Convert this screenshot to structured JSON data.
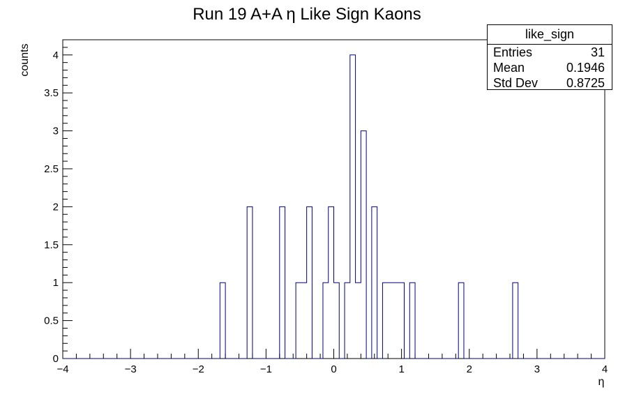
{
  "chart_data": {
    "type": "histogram",
    "title": "Run 19 A+A  η Like Sign Kaons",
    "xlabel": "η",
    "ylabel": "counts",
    "xlim": [
      -4,
      4
    ],
    "ylim": [
      0,
      4.2
    ],
    "bin_width": 0.08,
    "x_ticks": [
      "−4",
      "−3",
      "−2",
      "−1",
      "0",
      "1",
      "2",
      "3",
      "4"
    ],
    "y_ticks": [
      "0",
      "0.5",
      "1",
      "1.5",
      "2",
      "2.5",
      "3",
      "3.5",
      "4"
    ],
    "bins": [
      {
        "x": -1.68,
        "count": 1
      },
      {
        "x": -1.28,
        "count": 2
      },
      {
        "x": -0.8,
        "count": 2
      },
      {
        "x": -0.56,
        "count": 1
      },
      {
        "x": -0.48,
        "count": 1
      },
      {
        "x": -0.4,
        "count": 2
      },
      {
        "x": -0.16,
        "count": 1
      },
      {
        "x": -0.08,
        "count": 2
      },
      {
        "x": 0.0,
        "count": 1
      },
      {
        "x": 0.16,
        "count": 1
      },
      {
        "x": 0.24,
        "count": 4
      },
      {
        "x": 0.32,
        "count": 1
      },
      {
        "x": 0.4,
        "count": 3
      },
      {
        "x": 0.56,
        "count": 2
      },
      {
        "x": 0.72,
        "count": 1
      },
      {
        "x": 0.8,
        "count": 1
      },
      {
        "x": 0.88,
        "count": 1
      },
      {
        "x": 0.96,
        "count": 1
      },
      {
        "x": 1.12,
        "count": 1
      },
      {
        "x": 1.84,
        "count": 1
      },
      {
        "x": 2.64,
        "count": 1
      }
    ],
    "line_color": "#000080"
  },
  "stats": {
    "name": "like_sign",
    "rows": [
      {
        "label": "Entries",
        "value": "31"
      },
      {
        "label": "Mean",
        "value": "0.1946"
      },
      {
        "label": "Std Dev",
        "value": "0.8725"
      }
    ]
  }
}
